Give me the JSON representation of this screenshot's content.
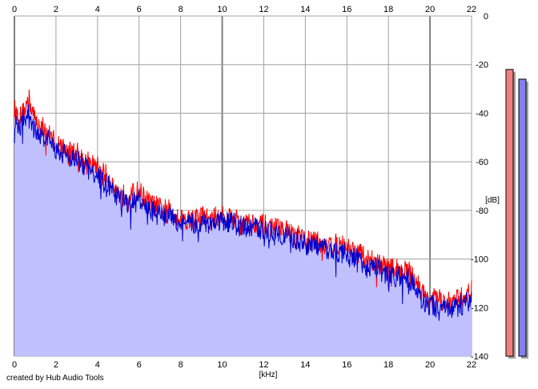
{
  "credit": "created by Hub Audio Tools",
  "colors": {
    "background": "#ffffff",
    "grid": "#a0a0a0",
    "grid_major": "#808080",
    "fill": "#c0c0ff",
    "left_channel": "#ff0000",
    "right_channel": "#0000cc",
    "left_meter": "#f08080",
    "right_meter": "#8080f0"
  },
  "chart_data": {
    "type": "line",
    "title": "",
    "xlabel": "[kHz]",
    "ylabel": "[dB]",
    "xlim": [
      0,
      22
    ],
    "ylim": [
      -140,
      0
    ],
    "x_ticks": [
      "0",
      "2",
      "4",
      "6",
      "8",
      "10",
      "12",
      "14",
      "16",
      "18",
      "20",
      "22"
    ],
    "y_ticks": [
      "0",
      "-20",
      "-40",
      "-60",
      "-80",
      "-100",
      "-120",
      "-140"
    ],
    "grid": true,
    "series": [
      {
        "color": "#ff0000",
        "x": [
          0,
          0.2,
          0.4,
          0.7,
          1,
          1.5,
          2,
          2.5,
          3,
          3.5,
          4,
          4.5,
          5,
          5.5,
          6,
          6.5,
          7,
          7.5,
          8,
          8.5,
          9,
          9.5,
          10,
          10.5,
          11,
          11.5,
          12,
          12.5,
          13,
          13.5,
          14,
          14.5,
          15,
          15.5,
          16,
          16.5,
          17,
          17.5,
          18,
          18.5,
          19,
          19.3,
          19.6,
          20,
          20.5,
          21,
          21.5,
          22
        ],
        "values": [
          -38,
          -42,
          -40,
          -34,
          -43,
          -47,
          -52,
          -55,
          -56,
          -60,
          -62,
          -66,
          -73,
          -74,
          -72,
          -77,
          -79,
          -80,
          -83,
          -84,
          -82,
          -84,
          -81,
          -83,
          -85,
          -85,
          -86,
          -87,
          -88,
          -90,
          -92,
          -93,
          -94,
          -94,
          -95,
          -97,
          -100,
          -101,
          -104,
          -104,
          -105,
          -108,
          -114,
          -116,
          -117,
          -118,
          -116,
          -113
        ]
      },
      {
        "color": "#0000cc",
        "x": [
          0,
          0.2,
          0.4,
          0.7,
          1,
          1.5,
          2,
          2.5,
          3,
          3.5,
          4,
          4.5,
          5,
          5.5,
          6,
          6.5,
          7,
          7.5,
          8,
          8.5,
          9,
          9.5,
          10,
          10.5,
          11,
          11.5,
          12,
          12.5,
          13,
          13.5,
          14,
          14.5,
          15,
          15.5,
          16,
          16.5,
          17,
          17.5,
          18,
          18.5,
          19,
          19.3,
          19.6,
          20,
          20.5,
          21,
          21.5,
          22
        ],
        "values": [
          -44,
          -47,
          -43,
          -40,
          -48,
          -50,
          -55,
          -57,
          -59,
          -63,
          -66,
          -70,
          -75,
          -77,
          -76,
          -80,
          -82,
          -83,
          -85,
          -86,
          -85,
          -86,
          -84,
          -85,
          -87,
          -87,
          -88,
          -89,
          -90,
          -92,
          -94,
          -95,
          -96,
          -97,
          -98,
          -100,
          -103,
          -104,
          -107,
          -107,
          -108,
          -112,
          -117,
          -119,
          -120,
          -121,
          -119,
          -117
        ]
      }
    ],
    "meters": [
      {
        "color": "#f08080",
        "level_db": -22
      },
      {
        "color": "#8080f0",
        "level_db": -26
      }
    ]
  }
}
